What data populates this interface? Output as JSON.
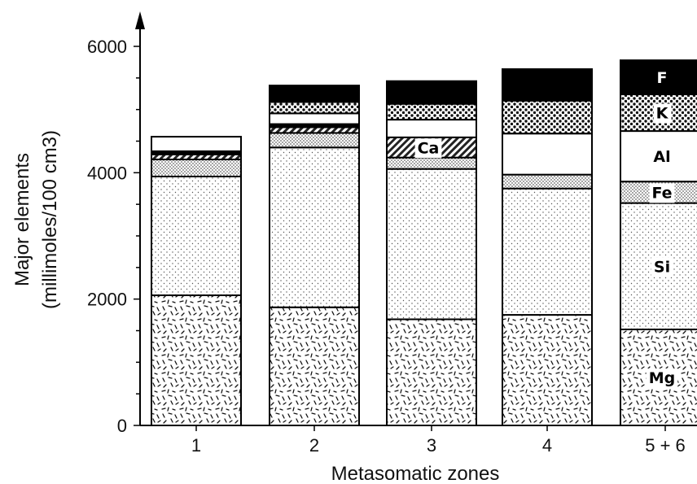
{
  "chart_data": {
    "type": "bar",
    "stacked": true,
    "title": "",
    "xlabel": "Metasomatic zones",
    "ylabel_lines": [
      "Major elements",
      "(millimoles/100 cm3)"
    ],
    "ylim": [
      0,
      6000
    ],
    "yticks": [
      0,
      2000,
      4000,
      6000
    ],
    "categories": [
      "1",
      "2",
      "3",
      "4",
      "5 + 6"
    ],
    "series": [
      {
        "name": "Mg",
        "pattern": "dashes",
        "values": [
          2060,
          1870,
          1680,
          1750,
          1520
        ]
      },
      {
        "name": "Si",
        "pattern": "fine-dots",
        "values": [
          1880,
          2530,
          2380,
          2000,
          2000
        ]
      },
      {
        "name": "Fe",
        "pattern": "dense-dots",
        "values": [
          270,
          230,
          180,
          220,
          340
        ]
      },
      {
        "name": "Ca",
        "pattern": "hatch",
        "values": [
          80,
          90,
          320,
          0,
          0
        ]
      },
      {
        "name": "",
        "pattern": "black",
        "values": [
          50,
          50,
          0,
          0,
          0
        ]
      },
      {
        "name": "Al",
        "pattern": "white",
        "values": [
          230,
          170,
          280,
          650,
          800
        ]
      },
      {
        "name": "K",
        "pattern": "coarse-dots",
        "values": [
          0,
          180,
          250,
          520,
          580
        ]
      },
      {
        "name": "F",
        "pattern": "black",
        "values": [
          0,
          260,
          360,
          500,
          540
        ]
      }
    ],
    "segment_labels": [
      {
        "series": "Ca",
        "category": "3",
        "text": "Ca"
      },
      {
        "series": "F",
        "category": "5 + 6",
        "text": "F"
      },
      {
        "series": "K",
        "category": "5 + 6",
        "text": "K"
      },
      {
        "series": "Al",
        "category": "5 + 6",
        "text": "Al"
      },
      {
        "series": "Fe",
        "category": "5 + 6",
        "text": "Fe"
      },
      {
        "series": "Si",
        "category": "5 + 6",
        "text": "Si"
      },
      {
        "series": "Mg",
        "category": "5 + 6",
        "text": "Mg"
      }
    ],
    "grid": false,
    "legend": "none"
  }
}
